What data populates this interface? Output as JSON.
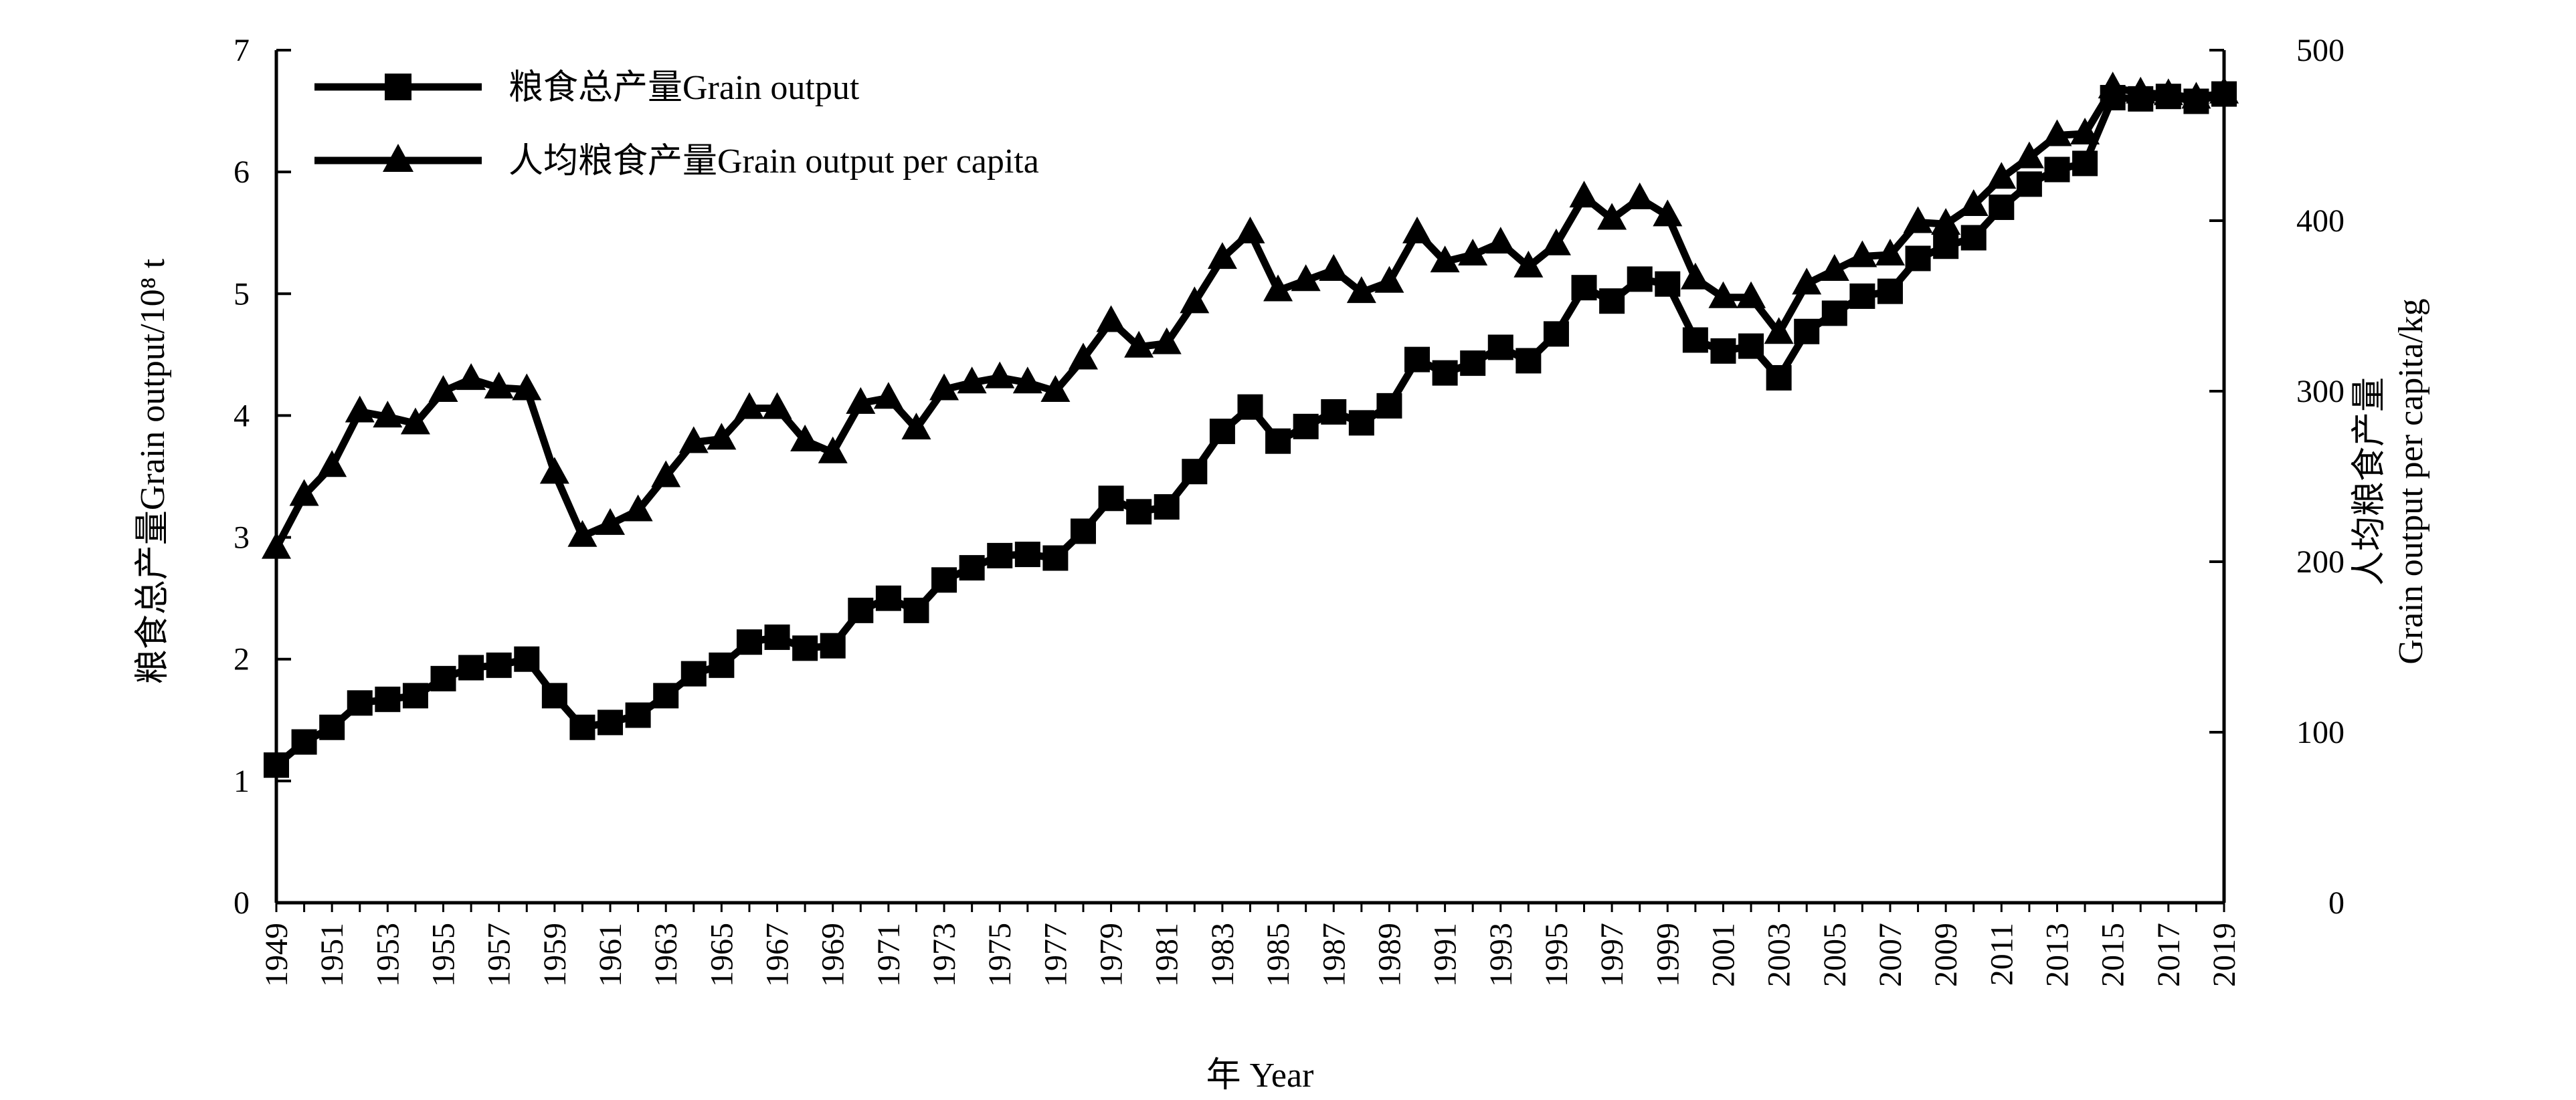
{
  "chart_data": {
    "type": "line",
    "xlabel": "年 Year",
    "ylabel_left": "粮食总产量Grain output/10⁸ t",
    "ylabel_right_line1": "人均粮食产量",
    "ylabel_right_line2": "Grain output per capita/kg",
    "ylim_left": [
      0,
      7
    ],
    "ylim_right": [
      0,
      500
    ],
    "xlim": [
      1949,
      2019
    ],
    "left_ticks": [
      "0",
      "1",
      "2",
      "3",
      "4",
      "5",
      "6",
      "7"
    ],
    "right_ticks": [
      "0",
      "100",
      "200",
      "300",
      "400",
      "500"
    ],
    "x_tick_labels": [
      "1949",
      "1951",
      "1953",
      "1955",
      "1957",
      "1959",
      "1961",
      "1963",
      "1965",
      "1967",
      "1969",
      "1971",
      "1973",
      "1975",
      "1977",
      "1979",
      "1981",
      "1983",
      "1985",
      "1987",
      "1989",
      "1991",
      "1993",
      "1995",
      "1997",
      "1999",
      "2001",
      "2003",
      "2005",
      "2007",
      "2009",
      "2011",
      "2013",
      "2015",
      "2017",
      "2019"
    ],
    "grid": false,
    "legend_position": "top-left",
    "x": [
      1949,
      1950,
      1951,
      1952,
      1953,
      1954,
      1955,
      1956,
      1957,
      1958,
      1959,
      1960,
      1961,
      1962,
      1963,
      1964,
      1965,
      1966,
      1967,
      1968,
      1969,
      1970,
      1971,
      1972,
      1973,
      1974,
      1975,
      1976,
      1977,
      1978,
      1979,
      1980,
      1981,
      1982,
      1983,
      1984,
      1985,
      1986,
      1987,
      1988,
      1989,
      1990,
      1991,
      1992,
      1993,
      1994,
      1995,
      1996,
      1997,
      1998,
      1999,
      2000,
      2001,
      2002,
      2003,
      2004,
      2005,
      2006,
      2007,
      2008,
      2009,
      2010,
      2011,
      2012,
      2013,
      2014,
      2015,
      2016,
      2017,
      2018,
      2019
    ],
    "series": [
      {
        "name": "粮食总产量Grain output",
        "axis": "left",
        "marker": "square",
        "values": [
          1.13,
          1.32,
          1.44,
          1.64,
          1.67,
          1.7,
          1.84,
          1.93,
          1.95,
          2.0,
          1.7,
          1.44,
          1.48,
          1.54,
          1.7,
          1.88,
          1.95,
          2.14,
          2.18,
          2.09,
          2.11,
          2.4,
          2.5,
          2.4,
          2.65,
          2.75,
          2.85,
          2.86,
          2.83,
          3.05,
          3.32,
          3.21,
          3.25,
          3.54,
          3.87,
          4.07,
          3.79,
          3.91,
          4.03,
          3.94,
          4.08,
          4.46,
          4.35,
          4.43,
          4.56,
          4.45,
          4.67,
          5.05,
          4.94,
          5.12,
          5.08,
          4.62,
          4.53,
          4.57,
          4.31,
          4.69,
          4.84,
          4.98,
          5.02,
          5.29,
          5.39,
          5.46,
          5.71,
          5.9,
          6.02,
          6.07,
          6.61,
          6.6,
          6.62,
          6.58,
          6.64
        ]
      },
      {
        "name": "人均粮食产量Grain output per capita",
        "axis": "right",
        "marker": "triangle",
        "values": [
          208,
          239,
          256,
          288,
          285,
          281,
          300,
          307,
          302,
          301,
          252,
          215,
          222,
          230,
          250,
          270,
          272,
          290,
          290,
          271,
          264,
          293,
          296,
          278,
          301,
          305,
          308,
          305,
          300,
          319,
          341,
          326,
          328,
          352,
          378,
          393,
          359,
          365,
          371,
          358,
          364,
          393,
          376,
          380,
          387,
          373,
          386,
          414,
          401,
          413,
          403,
          366,
          355,
          355,
          334,
          363,
          371,
          379,
          380,
          399,
          398,
          409,
          425,
          437,
          450,
          451,
          478,
          475,
          474,
          472,
          475
        ]
      }
    ]
  }
}
